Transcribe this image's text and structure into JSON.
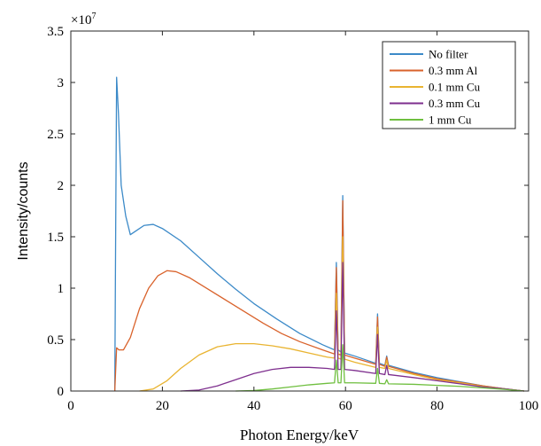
{
  "chart_data": {
    "type": "line",
    "title": "",
    "xlabel": "Photon Energy/keV",
    "ylabel": "Intensity/counts",
    "y_multiplier_label": "×10",
    "y_multiplier_exponent": "7",
    "xlim": [
      0,
      100
    ],
    "ylim": [
      0,
      3.5
    ],
    "x_ticks": [
      "0",
      "20",
      "40",
      "60",
      "80",
      "100"
    ],
    "y_ticks": [
      "0",
      "0.5",
      "1",
      "1.5",
      "2",
      "2.5",
      "3",
      "3.5"
    ],
    "grid": false,
    "legend_position": "top-right",
    "series": [
      {
        "name": "No filter",
        "color": "#3c8ac8",
        "points": [
          [
            9.6,
            0
          ],
          [
            9.8,
            1.6
          ],
          [
            10.0,
            3.05
          ],
          [
            10.4,
            2.7
          ],
          [
            11.0,
            2.0
          ],
          [
            12.0,
            1.7
          ],
          [
            13.0,
            1.52
          ],
          [
            14.0,
            1.55
          ],
          [
            16.0,
            1.61
          ],
          [
            18.0,
            1.62
          ],
          [
            20.0,
            1.58
          ],
          [
            24.0,
            1.46
          ],
          [
            28.0,
            1.3
          ],
          [
            32.0,
            1.14
          ],
          [
            36.0,
            0.99
          ],
          [
            40.0,
            0.85
          ],
          [
            45.0,
            0.7
          ],
          [
            50.0,
            0.56
          ],
          [
            55.0,
            0.45
          ],
          [
            57.6,
            0.4
          ],
          [
            58.0,
            1.25
          ],
          [
            58.4,
            0.4
          ],
          [
            59.0,
            0.38
          ],
          [
            59.4,
            1.9
          ],
          [
            59.8,
            0.37
          ],
          [
            62.0,
            0.34
          ],
          [
            66.6,
            0.27
          ],
          [
            67.0,
            0.75
          ],
          [
            67.4,
            0.27
          ],
          [
            68.6,
            0.25
          ],
          [
            69.0,
            0.34
          ],
          [
            69.4,
            0.25
          ],
          [
            75.0,
            0.18
          ],
          [
            80.0,
            0.13
          ],
          [
            85.0,
            0.09
          ],
          [
            90.0,
            0.05
          ],
          [
            95.0,
            0.02
          ],
          [
            99.0,
            0.0
          ]
        ]
      },
      {
        "name": "0.3 mm Al",
        "color": "#d9622b",
        "points": [
          [
            9.6,
            0
          ],
          [
            10.0,
            0.42
          ],
          [
            10.5,
            0.4
          ],
          [
            11.5,
            0.4
          ],
          [
            13.0,
            0.52
          ],
          [
            15.0,
            0.8
          ],
          [
            17.0,
            1.0
          ],
          [
            19.0,
            1.12
          ],
          [
            21.0,
            1.17
          ],
          [
            23.0,
            1.16
          ],
          [
            26.0,
            1.1
          ],
          [
            30.0,
            0.99
          ],
          [
            34.0,
            0.88
          ],
          [
            38.0,
            0.77
          ],
          [
            42.0,
            0.66
          ],
          [
            46.0,
            0.56
          ],
          [
            50.0,
            0.48
          ],
          [
            55.0,
            0.4
          ],
          [
            57.6,
            0.36
          ],
          [
            58.0,
            1.2
          ],
          [
            58.4,
            0.36
          ],
          [
            59.0,
            0.35
          ],
          [
            59.4,
            1.85
          ],
          [
            59.8,
            0.35
          ],
          [
            62.0,
            0.32
          ],
          [
            66.6,
            0.26
          ],
          [
            67.0,
            0.72
          ],
          [
            67.4,
            0.26
          ],
          [
            68.6,
            0.24
          ],
          [
            69.0,
            0.33
          ],
          [
            69.4,
            0.24
          ],
          [
            75.0,
            0.17
          ],
          [
            80.0,
            0.12
          ],
          [
            85.0,
            0.085
          ],
          [
            90.0,
            0.05
          ],
          [
            95.0,
            0.02
          ],
          [
            99.0,
            0.0
          ]
        ]
      },
      {
        "name": "0.1 mm Cu",
        "color": "#e9b431",
        "points": [
          [
            15.0,
            0
          ],
          [
            18.0,
            0.02
          ],
          [
            21.0,
            0.1
          ],
          [
            24.0,
            0.22
          ],
          [
            28.0,
            0.35
          ],
          [
            32.0,
            0.43
          ],
          [
            36.0,
            0.46
          ],
          [
            40.0,
            0.46
          ],
          [
            44.0,
            0.44
          ],
          [
            48.0,
            0.41
          ],
          [
            52.0,
            0.37
          ],
          [
            56.0,
            0.33
          ],
          [
            57.6,
            0.32
          ],
          [
            58.0,
            0.95
          ],
          [
            58.4,
            0.32
          ],
          [
            59.0,
            0.31
          ],
          [
            59.4,
            1.5
          ],
          [
            59.8,
            0.31
          ],
          [
            62.0,
            0.28
          ],
          [
            66.6,
            0.23
          ],
          [
            67.0,
            0.62
          ],
          [
            67.4,
            0.23
          ],
          [
            68.6,
            0.22
          ],
          [
            69.0,
            0.3
          ],
          [
            69.4,
            0.22
          ],
          [
            75.0,
            0.16
          ],
          [
            80.0,
            0.11
          ],
          [
            85.0,
            0.08
          ],
          [
            90.0,
            0.045
          ],
          [
            95.0,
            0.02
          ],
          [
            99.0,
            0.0
          ]
        ]
      },
      {
        "name": "0.3 mm Cu",
        "color": "#7e2f8e",
        "points": [
          [
            24.0,
            0
          ],
          [
            28.0,
            0.01
          ],
          [
            32.0,
            0.05
          ],
          [
            36.0,
            0.11
          ],
          [
            40.0,
            0.17
          ],
          [
            44.0,
            0.21
          ],
          [
            48.0,
            0.23
          ],
          [
            52.0,
            0.23
          ],
          [
            56.0,
            0.22
          ],
          [
            57.6,
            0.21
          ],
          [
            58.0,
            0.78
          ],
          [
            58.4,
            0.21
          ],
          [
            59.0,
            0.21
          ],
          [
            59.4,
            1.25
          ],
          [
            59.8,
            0.21
          ],
          [
            62.0,
            0.2
          ],
          [
            66.6,
            0.17
          ],
          [
            67.0,
            0.55
          ],
          [
            67.4,
            0.17
          ],
          [
            68.6,
            0.16
          ],
          [
            69.0,
            0.25
          ],
          [
            69.4,
            0.16
          ],
          [
            75.0,
            0.13
          ],
          [
            80.0,
            0.1
          ],
          [
            85.0,
            0.07
          ],
          [
            90.0,
            0.04
          ],
          [
            95.0,
            0.02
          ],
          [
            99.0,
            0.0
          ]
        ]
      },
      {
        "name": "1 mm Cu",
        "color": "#6fbf3f",
        "points": [
          [
            36.0,
            0
          ],
          [
            40.0,
            0.005
          ],
          [
            44.0,
            0.02
          ],
          [
            48.0,
            0.04
          ],
          [
            52.0,
            0.06
          ],
          [
            56.0,
            0.075
          ],
          [
            57.6,
            0.08
          ],
          [
            58.0,
            0.3
          ],
          [
            58.4,
            0.08
          ],
          [
            59.0,
            0.08
          ],
          [
            59.4,
            0.45
          ],
          [
            59.8,
            0.08
          ],
          [
            62.0,
            0.08
          ],
          [
            66.6,
            0.075
          ],
          [
            67.0,
            0.22
          ],
          [
            67.4,
            0.075
          ],
          [
            68.6,
            0.07
          ],
          [
            69.0,
            0.11
          ],
          [
            69.4,
            0.07
          ],
          [
            75.0,
            0.065
          ],
          [
            80.0,
            0.055
          ],
          [
            85.0,
            0.045
          ],
          [
            90.0,
            0.03
          ],
          [
            95.0,
            0.015
          ],
          [
            99.0,
            0.0
          ]
        ]
      }
    ]
  }
}
